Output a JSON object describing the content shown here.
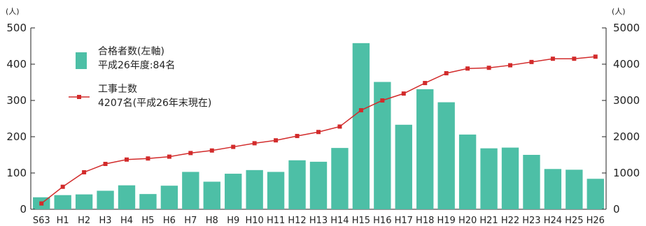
{
  "chart_data": {
    "type": "bar",
    "categories": [
      "S63",
      "H1",
      "H2",
      "H3",
      "H4",
      "H5",
      "H6",
      "H7",
      "H8",
      "H9",
      "H10",
      "H11",
      "H12",
      "H13",
      "H14",
      "H15",
      "H16",
      "H17",
      "H18",
      "H19",
      "H20",
      "H21",
      "H22",
      "H23",
      "H24",
      "H25",
      "H26"
    ],
    "series": [
      {
        "name": "合格者数(左軸)",
        "note": "平成26年度:84名",
        "type": "bar",
        "axis": "left",
        "color": "#4dbfa6",
        "values": [
          33,
          39,
          41,
          51,
          66,
          42,
          65,
          103,
          76,
          98,
          108,
          103,
          135,
          131,
          169,
          458,
          351,
          233,
          331,
          295,
          206,
          168,
          170,
          150,
          111,
          109,
          84
        ]
      },
      {
        "name": "工事士数",
        "note": "4207名(平成26年末現在)",
        "type": "line",
        "axis": "right",
        "color": "#d22b2b",
        "values": [
          160,
          620,
          1020,
          1250,
          1370,
          1400,
          1450,
          1550,
          1620,
          1720,
          1820,
          1900,
          2020,
          2130,
          2280,
          2730,
          3000,
          3190,
          3480,
          3750,
          3880,
          3900,
          3970,
          4060,
          4150,
          4150,
          4207
        ]
      }
    ],
    "y_left": {
      "unit": "(人)",
      "min": 0,
      "max": 500,
      "ticks": [
        0,
        100,
        200,
        300,
        400,
        500
      ]
    },
    "y_right": {
      "unit": "(人)",
      "min": 0,
      "max": 5000,
      "ticks": [
        0,
        1000,
        2000,
        3000,
        4000,
        5000
      ]
    },
    "legend_position": "top-left",
    "grid": false
  }
}
